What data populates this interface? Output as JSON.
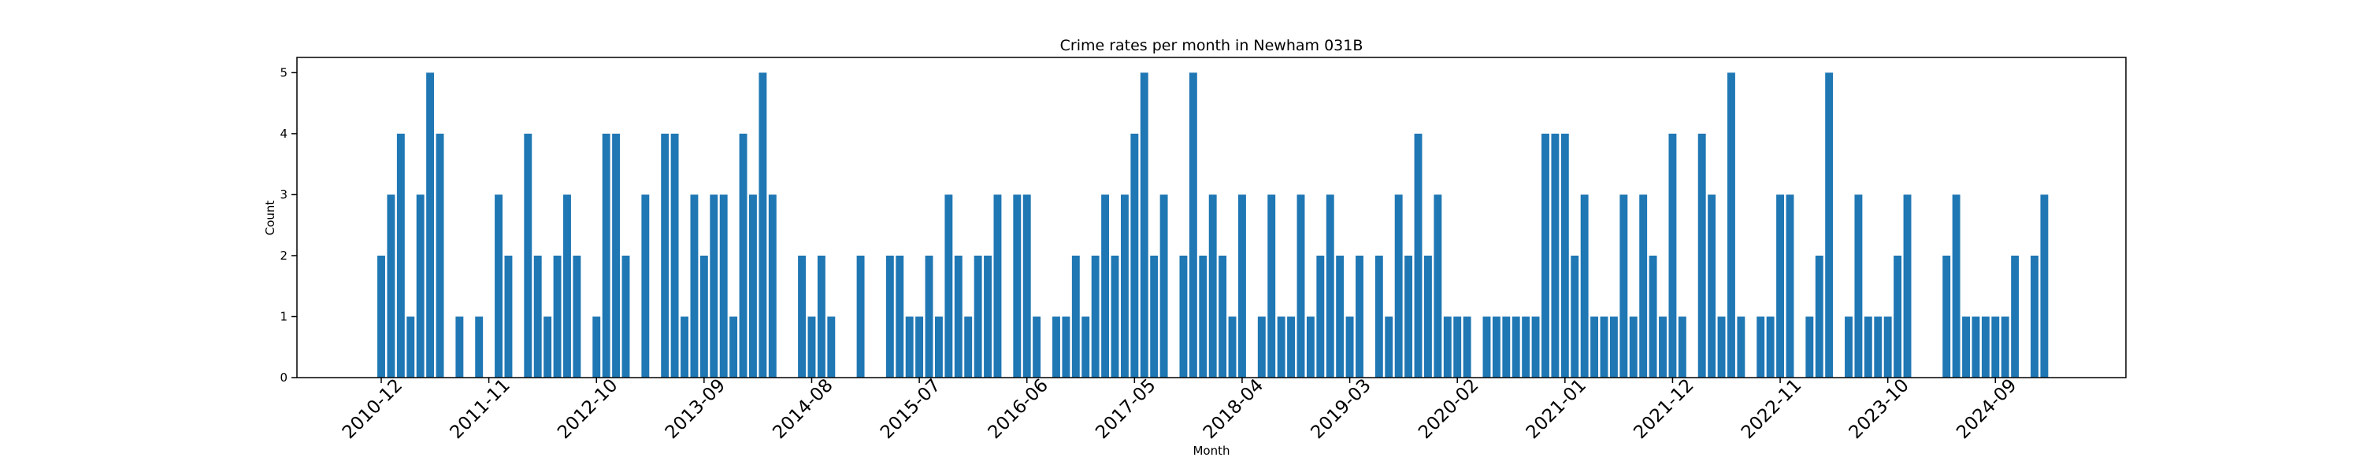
{
  "chart_data": {
    "type": "bar",
    "title": "Crime rates per month in Newham 031B",
    "x_label": "Month",
    "y_label": "Count",
    "color": "#1f77b4",
    "categories": [
      "2010-12",
      null,
      null,
      null,
      null,
      null,
      null,
      null,
      null,
      null,
      null,
      "2011-11",
      null,
      null,
      null,
      null,
      null,
      null,
      null,
      null,
      null,
      null,
      "2012-10",
      null,
      null,
      null,
      null,
      null,
      null,
      null,
      null,
      null,
      null,
      "2013-09",
      null,
      null,
      null,
      null,
      null,
      null,
      null,
      null,
      null,
      null,
      "2014-08",
      null,
      null,
      null,
      null,
      null,
      null,
      null,
      null,
      null,
      null,
      "2015-07",
      null,
      null,
      null,
      null,
      null,
      null,
      null,
      null,
      null,
      null,
      "2016-06",
      null,
      null,
      null,
      null,
      null,
      null,
      null,
      null,
      null,
      null,
      "2017-05",
      null,
      null,
      null,
      null,
      null,
      null,
      null,
      null,
      null,
      null,
      "2018-04",
      null,
      null,
      null,
      null,
      null,
      null,
      null,
      null,
      null,
      null,
      "2019-03",
      null,
      null,
      null,
      null,
      null,
      null,
      null,
      null,
      null,
      null,
      "2020-02",
      null,
      null,
      null,
      null,
      null,
      null,
      null,
      null,
      null,
      null,
      "2021-01",
      null,
      null,
      null,
      null,
      null,
      null,
      null,
      null,
      null,
      null,
      "2021-12",
      null,
      null,
      null,
      null,
      null,
      null,
      null,
      null,
      null,
      null,
      "2022-11",
      null,
      null,
      null,
      null,
      null,
      null,
      null,
      null,
      null,
      null,
      "2023-10",
      null,
      null,
      null,
      null,
      null,
      null,
      null,
      null,
      null,
      null,
      "2024-09",
      null,
      null,
      null,
      null,
      null
    ],
    "values": [
      2,
      3,
      4,
      1,
      3,
      5,
      4,
      0,
      1,
      0,
      1,
      0,
      3,
      2,
      0,
      4,
      2,
      1,
      2,
      3,
      2,
      0,
      1,
      4,
      4,
      2,
      0,
      3,
      0,
      4,
      4,
      1,
      3,
      2,
      3,
      3,
      1,
      4,
      3,
      5,
      3,
      0,
      0,
      2,
      1,
      2,
      1,
      0,
      0,
      2,
      0,
      0,
      2,
      2,
      1,
      1,
      2,
      1,
      3,
      2,
      1,
      2,
      2,
      3,
      0,
      3,
      3,
      1,
      0,
      1,
      1,
      2,
      1,
      2,
      3,
      2,
      3,
      4,
      5,
      2,
      3,
      0,
      2,
      5,
      2,
      3,
      2,
      1,
      3,
      0,
      1,
      3,
      1,
      1,
      3,
      1,
      2,
      3,
      2,
      1,
      2,
      0,
      2,
      1,
      3,
      2,
      4,
      2,
      3,
      1,
      1,
      1,
      0,
      1,
      1,
      1,
      1,
      1,
      1,
      4,
      4,
      4,
      2,
      3,
      1,
      1,
      1,
      3,
      1,
      3,
      2,
      1,
      4,
      1,
      0,
      4,
      3,
      1,
      5,
      1,
      0,
      1,
      1,
      3,
      3,
      0,
      1,
      2,
      5,
      0,
      1,
      3,
      1,
      1,
      1,
      2,
      3,
      0,
      0,
      0,
      2,
      3,
      1,
      1,
      1,
      1,
      1,
      2,
      0,
      2,
      3
    ],
    "ylim": [
      0,
      5.25
    ],
    "yticks": [
      0,
      1,
      2,
      3,
      4,
      5
    ]
  }
}
